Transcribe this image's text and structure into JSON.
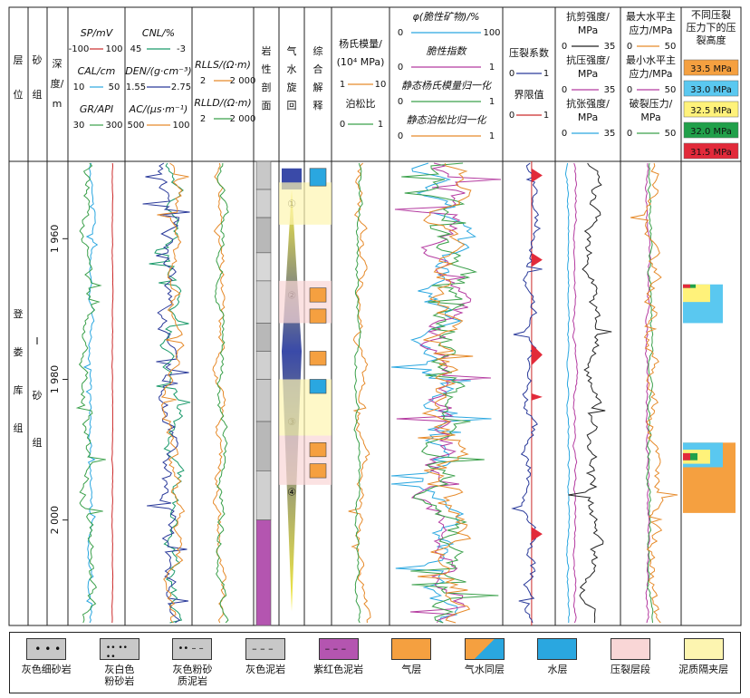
{
  "chart_data": {
    "type": "well-log",
    "header": {
      "layer": "层位",
      "sand_group": "砂组",
      "depth": "深度/m",
      "track1": [
        {
          "label": "SP/mV",
          "min": "-100",
          "max": "100",
          "color": "#cc2a2a"
        },
        {
          "label": "CAL/cm",
          "min": "10",
          "max": "50",
          "color": "#2aa7e0"
        },
        {
          "label": "GR/API",
          "min": "30",
          "max": "300",
          "color": "#3aa04a"
        }
      ],
      "track2": [
        {
          "label": "CNL/%",
          "min": "45",
          "max": "-3",
          "color": "#1a9a6a"
        },
        {
          "label": "DEN/(g·cm⁻³)",
          "min": "1.55",
          "max": "2.75",
          "color": "#2a3a9a"
        },
        {
          "label": "AC/(μs·m⁻¹)",
          "min": "500",
          "max": "100",
          "color": "#e68a2a"
        }
      ],
      "track3": [
        {
          "label": "RLLS/(Ω·m)",
          "min": "2",
          "max": "2 000",
          "color": "#e68a2a"
        },
        {
          "label": "RLLD/(Ω·m)",
          "min": "2",
          "max": "2 000",
          "color": "#3aa04a"
        }
      ],
      "lithology": "岩性剖面",
      "cycle": "气水旋回",
      "interpretation": "综合解释",
      "track4": [
        {
          "label": "杨氏模量/(10⁴ MPa)",
          "min": "1",
          "max": "10",
          "color": "#e68a2a"
        },
        {
          "label": "泊松比",
          "min": "0",
          "max": "1",
          "color": "#3aa04a"
        }
      ],
      "track5": [
        {
          "label": "φ(脆性矿物)/%",
          "min": "0",
          "max": "100",
          "color": "#2aa7e0"
        },
        {
          "label": "脆性指数",
          "min": "0",
          "max": "1",
          "color": "#b43aa0"
        },
        {
          "label": "静态杨氏模量归一化",
          "min": "0",
          "max": "1",
          "color": "#3aa04a"
        },
        {
          "label": "静态泊松比归一化",
          "min": "0",
          "max": "1",
          "color": "#e68a2a"
        }
      ],
      "track6": [
        {
          "label": "压裂系数",
          "min": "0",
          "max": "1",
          "color": "#2a3a9a"
        },
        {
          "label": "界限值",
          "min": "0",
          "max": "1",
          "color": "#cc2a2a"
        }
      ],
      "track7": [
        {
          "label": "抗剪强度/MPa",
          "min": "0",
          "max": "35",
          "color": "#222222"
        },
        {
          "label": "抗压强度/MPa",
          "min": "0",
          "max": "35",
          "color": "#b43aa0"
        },
        {
          "label": "抗张强度/MPa",
          "min": "0",
          "max": "35",
          "color": "#2aa7e0"
        }
      ],
      "track8": [
        {
          "label": "最大水平主应力/MPa",
          "min": "0",
          "max": "50",
          "color": "#e68a2a"
        },
        {
          "label": "最小水平主应力/MPa",
          "min": "0",
          "max": "50",
          "color": "#b43aa0"
        },
        {
          "label": "破裂压力/MPa",
          "min": "0",
          "max": "50",
          "color": "#3aa04a"
        }
      ],
      "track9_title": "不同压裂压力下的压裂高度",
      "pressures": [
        {
          "label": "33.5 MPa",
          "color": "#f5a040"
        },
        {
          "label": "33.0 MPa",
          "color": "#5ac8f0"
        },
        {
          "label": "32.5 MPa",
          "color": "#fff27a"
        },
        {
          "label": "32.0 MPa",
          "color": "#21a04a"
        },
        {
          "label": "31.5 MPa",
          "color": "#e22a3a"
        }
      ]
    },
    "stratigraphy": {
      "formation": "登娄库组",
      "sand_group": "I砂组"
    },
    "depth_range": [
      1949,
      2015
    ],
    "depth_ticks": [
      1960,
      1980,
      2000
    ],
    "cycles": [
      "①",
      "②",
      "③",
      "④"
    ],
    "legend": [
      {
        "name": "灰色细砂岩",
        "key": "fine-sandstone"
      },
      {
        "name": "灰白色\n粉砂岩",
        "key": "siltstone"
      },
      {
        "name": "灰色粉砂\n质泥岩",
        "key": "silty-mudstone"
      },
      {
        "name": "灰色泥岩",
        "key": "grey-mudstone"
      },
      {
        "name": "紫红色泥岩",
        "key": "purple-mudstone"
      },
      {
        "name": "气层",
        "key": "gas",
        "color": "#f5a040"
      },
      {
        "name": "气水同层",
        "key": "gas-water"
      },
      {
        "name": "水层",
        "key": "water",
        "color": "#2aa7e0"
      },
      {
        "name": "压裂层段",
        "key": "frac",
        "color": "#f9d6d6"
      },
      {
        "name": "泥质隔夹层",
        "key": "barrier",
        "color": "#fdf5b0"
      }
    ]
  }
}
